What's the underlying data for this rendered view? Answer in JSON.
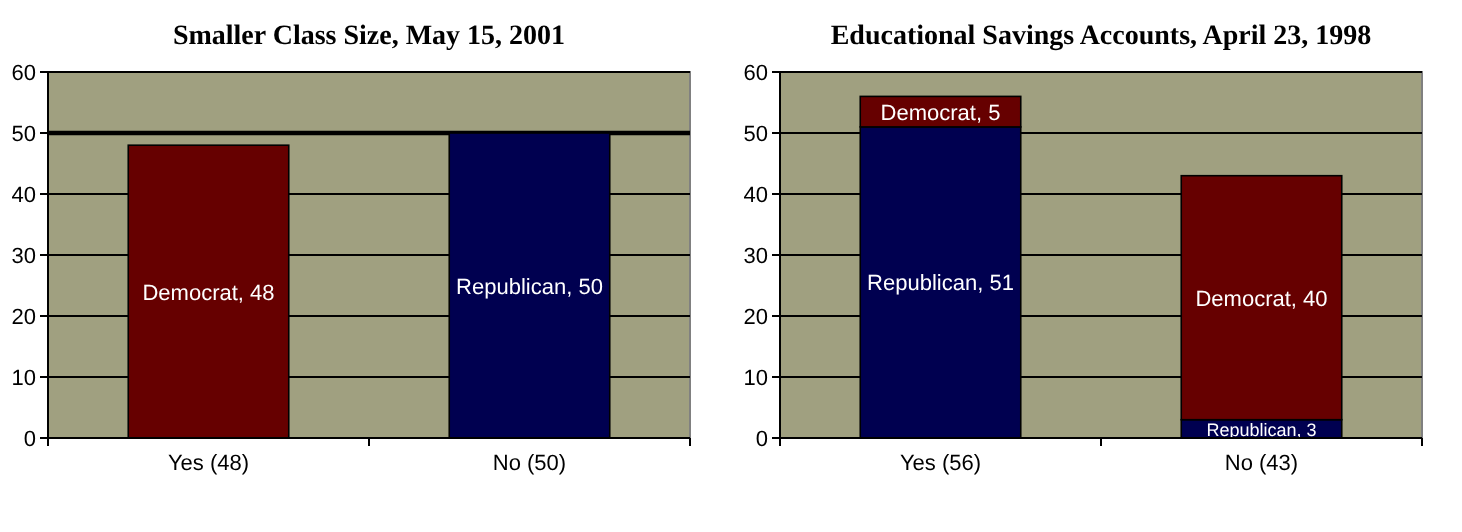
{
  "chart_data": [
    {
      "type": "bar",
      "title": "Smaller Class Size, May 15, 2001",
      "categories": [
        "Yes (48)",
        "No (50)"
      ],
      "stacked": true,
      "ylim": [
        0,
        60
      ],
      "yticks": [
        0,
        10,
        20,
        30,
        40,
        50,
        60
      ],
      "grid": "y",
      "series": [
        {
          "color": "#660000",
          "values": [
            48,
            null
          ],
          "value_labels": [
            "Democrat, 48",
            null
          ]
        },
        {
          "color": "#000050",
          "values": [
            null,
            50
          ],
          "value_labels": [
            null,
            "Republican, 50"
          ]
        }
      ],
      "ref_lines": [
        {
          "axis": "y",
          "value": 50,
          "color": "#000000"
        }
      ]
    },
    {
      "type": "bar",
      "title": "Educational Savings Accounts, April 23, 1998",
      "categories": [
        "Yes (56)",
        "No (43)"
      ],
      "stacked": true,
      "ylim": [
        0,
        60
      ],
      "yticks": [
        0,
        10,
        20,
        30,
        40,
        50,
        60
      ],
      "grid": "y",
      "series": [
        {
          "color": "#000050",
          "values": [
            51,
            3
          ],
          "value_labels": [
            "Republican, 51",
            "Republican, 3"
          ]
        },
        {
          "color": "#660000",
          "values": [
            5,
            40
          ],
          "value_labels": [
            "Democrat, 5",
            "Democrat, 40"
          ]
        }
      ]
    }
  ]
}
